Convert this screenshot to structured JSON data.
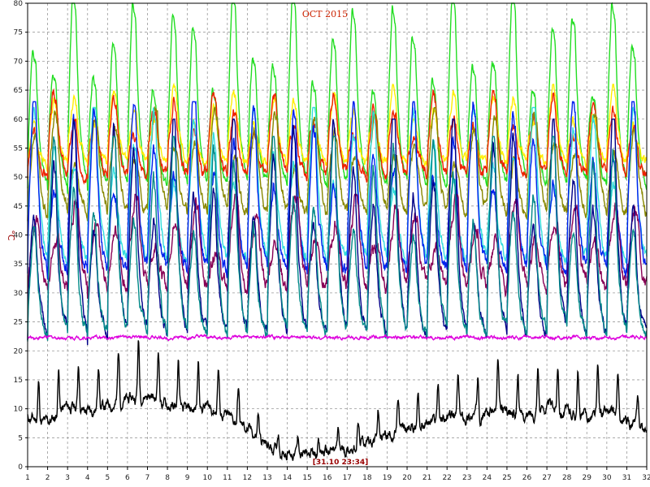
{
  "chart_data": {
    "type": "line",
    "title": "OCT 2015",
    "ylabel": "°C",
    "xlabel": "",
    "cursor_label": "[31.10 23:34]",
    "xlim": [
      1,
      32
    ],
    "ylim": [
      0,
      80
    ],
    "x_ticks": [
      1,
      2,
      3,
      4,
      5,
      6,
      7,
      8,
      9,
      10,
      11,
      12,
      13,
      14,
      15,
      16,
      17,
      18,
      19,
      20,
      21,
      22,
      23,
      24,
      25,
      26,
      27,
      28,
      29,
      30,
      31,
      32
    ],
    "y_ticks": [
      0,
      5,
      10,
      15,
      20,
      25,
      30,
      35,
      40,
      45,
      50,
      55,
      60,
      65,
      70,
      75,
      80
    ],
    "grid": true,
    "legend": "none",
    "series": [
      {
        "color": "#22dd22",
        "kind": "cycle",
        "min": 48,
        "max": 78,
        "peak": 0.25,
        "duty": 0.55,
        "noise": 1.0,
        "seed": 1,
        "start": 1.0,
        "end": 32
      },
      {
        "color": "#ffee00",
        "kind": "cycle",
        "min": 52,
        "max": 64,
        "peak": 0.3,
        "duty": 0.45,
        "noise": 1.2,
        "seed": 2,
        "start": 1.0,
        "end": 32
      },
      {
        "color": "#ee2200",
        "kind": "cycle",
        "min": 50,
        "max": 63,
        "peak": 0.3,
        "duty": 0.45,
        "noise": 1.5,
        "seed": 3,
        "start": 1.0,
        "end": 32
      },
      {
        "color": "#888800",
        "kind": "cycle",
        "min": 43,
        "max": 60,
        "peak": 0.35,
        "duty": 0.5,
        "noise": 1.5,
        "seed": 4,
        "start": 1.0,
        "end": 32
      },
      {
        "color": "#33dddd",
        "kind": "cycle",
        "min": 35,
        "max": 60,
        "peak": 0.3,
        "duty": 0.4,
        "noise": 1.5,
        "seed": 5,
        "start": 1.0,
        "end": 32
      },
      {
        "color": "#0022ee",
        "kind": "cycle",
        "min": 33,
        "max": 61,
        "peak": 0.3,
        "duty": 0.4,
        "noise": 1.8,
        "seed": 6,
        "start": 1.0,
        "end": 32
      },
      {
        "color": "#880055",
        "kind": "cycle",
        "min": 30,
        "max": 45,
        "peak": 0.4,
        "duty": 0.5,
        "noise": 2.0,
        "seed": 7,
        "start": 1.0,
        "end": 32
      },
      {
        "color": "#000088",
        "kind": "cycle",
        "min": 22,
        "max": 58,
        "peak": 0.3,
        "duty": 0.35,
        "noise": 1.5,
        "seed": 8,
        "start": 1.0,
        "end": 32
      },
      {
        "color": "#008888",
        "kind": "cycle",
        "min": 22,
        "max": 55,
        "peak": 0.3,
        "duty": 0.35,
        "noise": 1.5,
        "seed": 9,
        "start": 1.0,
        "end": 32
      },
      {
        "color": "#dd00dd",
        "kind": "flat",
        "base": 22.3,
        "noise": 0.4,
        "seed": 10,
        "start": 1.0,
        "end": 32
      },
      {
        "color": "#000000",
        "kind": "spiky",
        "seed": 11,
        "start": 1.0,
        "end": 32,
        "levels": [
          [
            1,
            10
          ],
          [
            2,
            9
          ],
          [
            3,
            12
          ],
          [
            4,
            11
          ],
          [
            5,
            12
          ],
          [
            6,
            13
          ],
          [
            7,
            14
          ],
          [
            8,
            12
          ],
          [
            9,
            11
          ],
          [
            10,
            12
          ],
          [
            11,
            10
          ],
          [
            12,
            8
          ],
          [
            13,
            5
          ],
          [
            14,
            4
          ],
          [
            15,
            3.5
          ],
          [
            16,
            4
          ],
          [
            17,
            4.5
          ],
          [
            18,
            6
          ],
          [
            19,
            7
          ],
          [
            20,
            8
          ],
          [
            21,
            9
          ],
          [
            22,
            10
          ],
          [
            23,
            10
          ],
          [
            24,
            11
          ],
          [
            25,
            11
          ],
          [
            26,
            10
          ],
          [
            27,
            12
          ],
          [
            28,
            11
          ],
          [
            29,
            10
          ],
          [
            30,
            11
          ],
          [
            31,
            9
          ],
          [
            32,
            8
          ]
        ]
      }
    ]
  }
}
